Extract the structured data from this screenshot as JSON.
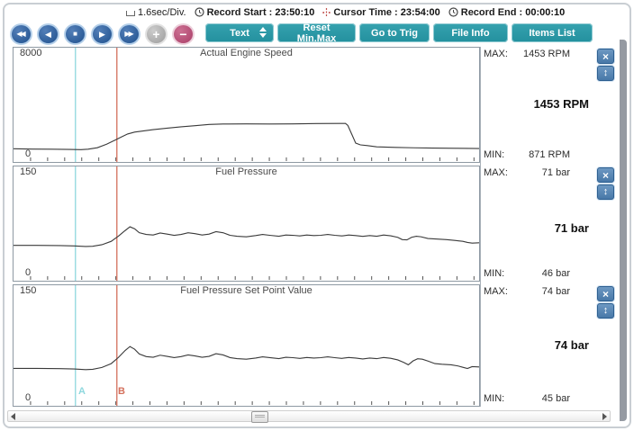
{
  "statusbar": {
    "interval": "1.6sec/Div.",
    "record_start_label": "Record Start :",
    "record_start_value": "23:50:10",
    "cursor_time_label": "Cursor Time :",
    "cursor_time_value": "23:54:00",
    "record_end_label": "Record End :",
    "record_end_value": "00:00:10"
  },
  "toolbar": {
    "media": [
      {
        "name": "rewind",
        "glyph": "◀◀"
      },
      {
        "name": "step-back",
        "glyph": "◀"
      },
      {
        "name": "stop",
        "glyph": "■"
      },
      {
        "name": "play",
        "glyph": "▶"
      },
      {
        "name": "fast-forward",
        "glyph": "▶▶"
      },
      {
        "name": "zoom-in",
        "glyph": "+"
      },
      {
        "name": "zoom-out",
        "glyph": "−"
      }
    ],
    "text_dropdown_label": "Text",
    "reset_minmax_label": "Reset Min.Max",
    "go_to_trig_label": "Go to Trig",
    "file_info_label": "File Info",
    "items_list_label": "Items List"
  },
  "colors": {
    "teal_button": "#2b97a4",
    "media_blue": "#2f5f9b",
    "minus_rose": "#bb517a",
    "plus_gray": "#b5b5b5",
    "curve": "#3a3a3a",
    "cursor_a": "#8fd8de",
    "cursor_b": "#d4705c"
  },
  "cursors": {
    "a": {
      "label": "A",
      "x": 0.133,
      "color": "#8fd8de"
    },
    "b": {
      "label": "B",
      "x": 0.222,
      "color": "#d4705c"
    }
  },
  "plot": {
    "tick_count": 27,
    "close_glyph": "×",
    "updown_glyph": "↕"
  },
  "charts": [
    {
      "title": "Actual Engine Speed",
      "y_top_label": "8000",
      "y_bottom_label": "0",
      "max_label": "MAX:",
      "max_value": "1453 RPM",
      "min_label": "MIN:",
      "min_value": "871 RPM",
      "current_value": "1453 RPM",
      "points": [
        [
          0,
          0.115
        ],
        [
          0.04,
          0.113
        ],
        [
          0.08,
          0.112
        ],
        [
          0.12,
          0.11
        ],
        [
          0.145,
          0.108
        ],
        [
          0.16,
          0.112
        ],
        [
          0.18,
          0.125
        ],
        [
          0.2,
          0.155
        ],
        [
          0.215,
          0.185
        ],
        [
          0.23,
          0.215
        ],
        [
          0.245,
          0.245
        ],
        [
          0.26,
          0.262
        ],
        [
          0.28,
          0.272
        ],
        [
          0.3,
          0.283
        ],
        [
          0.33,
          0.296
        ],
        [
          0.36,
          0.308
        ],
        [
          0.39,
          0.318
        ],
        [
          0.42,
          0.328
        ],
        [
          0.45,
          0.332
        ],
        [
          0.5,
          0.334
        ],
        [
          0.55,
          0.332
        ],
        [
          0.6,
          0.334
        ],
        [
          0.65,
          0.336
        ],
        [
          0.7,
          0.337
        ],
        [
          0.713,
          0.337
        ],
        [
          0.718,
          0.32
        ],
        [
          0.728,
          0.23
        ],
        [
          0.735,
          0.165
        ],
        [
          0.745,
          0.15
        ],
        [
          0.76,
          0.143
        ],
        [
          0.78,
          0.133
        ],
        [
          0.82,
          0.127
        ],
        [
          0.86,
          0.124
        ],
        [
          0.9,
          0.122
        ],
        [
          0.95,
          0.12
        ],
        [
          1,
          0.118
        ]
      ]
    },
    {
      "title": "Fuel Pressure",
      "y_top_label": "150",
      "y_bottom_label": "0",
      "max_label": "MAX:",
      "max_value": "71 bar",
      "min_label": "MIN:",
      "min_value": "46 bar",
      "current_value": "71 bar",
      "points": [
        [
          0,
          0.31
        ],
        [
          0.05,
          0.31
        ],
        [
          0.1,
          0.308
        ],
        [
          0.13,
          0.305
        ],
        [
          0.155,
          0.3
        ],
        [
          0.17,
          0.302
        ],
        [
          0.19,
          0.315
        ],
        [
          0.21,
          0.345
        ],
        [
          0.225,
          0.39
        ],
        [
          0.24,
          0.44
        ],
        [
          0.25,
          0.472
        ],
        [
          0.26,
          0.455
        ],
        [
          0.27,
          0.42
        ],
        [
          0.285,
          0.405
        ],
        [
          0.3,
          0.4
        ],
        [
          0.315,
          0.418
        ],
        [
          0.33,
          0.408
        ],
        [
          0.345,
          0.398
        ],
        [
          0.36,
          0.405
        ],
        [
          0.375,
          0.42
        ],
        [
          0.39,
          0.412
        ],
        [
          0.405,
          0.4
        ],
        [
          0.42,
          0.408
        ],
        [
          0.435,
          0.43
        ],
        [
          0.45,
          0.42
        ],
        [
          0.465,
          0.398
        ],
        [
          0.48,
          0.39
        ],
        [
          0.5,
          0.385
        ],
        [
          0.52,
          0.395
        ],
        [
          0.535,
          0.405
        ],
        [
          0.55,
          0.398
        ],
        [
          0.57,
          0.39
        ],
        [
          0.585,
          0.4
        ],
        [
          0.6,
          0.398
        ],
        [
          0.615,
          0.392
        ],
        [
          0.63,
          0.4
        ],
        [
          0.645,
          0.395
        ],
        [
          0.66,
          0.398
        ],
        [
          0.675,
          0.405
        ],
        [
          0.69,
          0.398
        ],
        [
          0.705,
          0.392
        ],
        [
          0.72,
          0.4
        ],
        [
          0.735,
          0.395
        ],
        [
          0.75,
          0.388
        ],
        [
          0.765,
          0.395
        ],
        [
          0.78,
          0.39
        ],
        [
          0.795,
          0.4
        ],
        [
          0.81,
          0.393
        ],
        [
          0.825,
          0.38
        ],
        [
          0.835,
          0.36
        ],
        [
          0.845,
          0.358
        ],
        [
          0.855,
          0.38
        ],
        [
          0.865,
          0.39
        ],
        [
          0.875,
          0.385
        ],
        [
          0.89,
          0.37
        ],
        [
          0.91,
          0.365
        ],
        [
          0.93,
          0.36
        ],
        [
          0.95,
          0.352
        ],
        [
          0.965,
          0.345
        ],
        [
          0.975,
          0.335
        ],
        [
          0.985,
          0.33
        ],
        [
          1,
          0.332
        ]
      ]
    },
    {
      "title": "Fuel Pressure Set Point Value",
      "y_top_label": "150",
      "y_bottom_label": "0",
      "max_label": "MAX:",
      "max_value": "74 bar",
      "min_label": "MIN:",
      "min_value": "45 bar",
      "current_value": "74 bar",
      "points": [
        [
          0,
          0.31
        ],
        [
          0.05,
          0.31
        ],
        [
          0.1,
          0.308
        ],
        [
          0.13,
          0.305
        ],
        [
          0.155,
          0.3
        ],
        [
          0.17,
          0.303
        ],
        [
          0.19,
          0.318
        ],
        [
          0.21,
          0.35
        ],
        [
          0.225,
          0.4
        ],
        [
          0.24,
          0.46
        ],
        [
          0.25,
          0.492
        ],
        [
          0.26,
          0.47
        ],
        [
          0.27,
          0.43
        ],
        [
          0.285,
          0.408
        ],
        [
          0.3,
          0.402
        ],
        [
          0.315,
          0.42
        ],
        [
          0.33,
          0.41
        ],
        [
          0.345,
          0.4
        ],
        [
          0.36,
          0.408
        ],
        [
          0.375,
          0.422
        ],
        [
          0.39,
          0.414
        ],
        [
          0.405,
          0.402
        ],
        [
          0.42,
          0.41
        ],
        [
          0.435,
          0.432
        ],
        [
          0.45,
          0.422
        ],
        [
          0.465,
          0.4
        ],
        [
          0.48,
          0.392
        ],
        [
          0.5,
          0.386
        ],
        [
          0.52,
          0.396
        ],
        [
          0.535,
          0.406
        ],
        [
          0.55,
          0.4
        ],
        [
          0.57,
          0.392
        ],
        [
          0.585,
          0.402
        ],
        [
          0.6,
          0.399
        ],
        [
          0.615,
          0.393
        ],
        [
          0.63,
          0.401
        ],
        [
          0.645,
          0.396
        ],
        [
          0.66,
          0.399
        ],
        [
          0.675,
          0.406
        ],
        [
          0.69,
          0.399
        ],
        [
          0.705,
          0.393
        ],
        [
          0.72,
          0.401
        ],
        [
          0.735,
          0.396
        ],
        [
          0.75,
          0.389
        ],
        [
          0.765,
          0.396
        ],
        [
          0.78,
          0.391
        ],
        [
          0.795,
          0.401
        ],
        [
          0.81,
          0.394
        ],
        [
          0.825,
          0.381
        ],
        [
          0.838,
          0.36
        ],
        [
          0.848,
          0.34
        ],
        [
          0.858,
          0.372
        ],
        [
          0.868,
          0.39
        ],
        [
          0.878,
          0.386
        ],
        [
          0.89,
          0.371
        ],
        [
          0.905,
          0.35
        ],
        [
          0.92,
          0.345
        ],
        [
          0.94,
          0.34
        ],
        [
          0.955,
          0.33
        ],
        [
          0.965,
          0.32
        ],
        [
          0.975,
          0.31
        ],
        [
          0.985,
          0.325
        ],
        [
          1,
          0.322
        ]
      ]
    }
  ],
  "chart_data": [
    {
      "type": "line",
      "title": "Actual Engine Speed",
      "ylabel": "RPM",
      "ylim": [
        0,
        8000
      ],
      "max": 1453,
      "min": 871,
      "current": 1453,
      "unit": "RPM",
      "cursor_a_time": "23:50:10",
      "cursor_b_time": "23:54:00",
      "x_div": "1.6sec/Div."
    },
    {
      "type": "line",
      "title": "Fuel Pressure",
      "ylabel": "bar",
      "ylim": [
        0,
        150
      ],
      "max": 71,
      "min": 46,
      "current": 71,
      "unit": "bar"
    },
    {
      "type": "line",
      "title": "Fuel Pressure Set Point Value",
      "ylabel": "bar",
      "ylim": [
        0,
        150
      ],
      "max": 74,
      "min": 45,
      "current": 74,
      "unit": "bar"
    }
  ]
}
